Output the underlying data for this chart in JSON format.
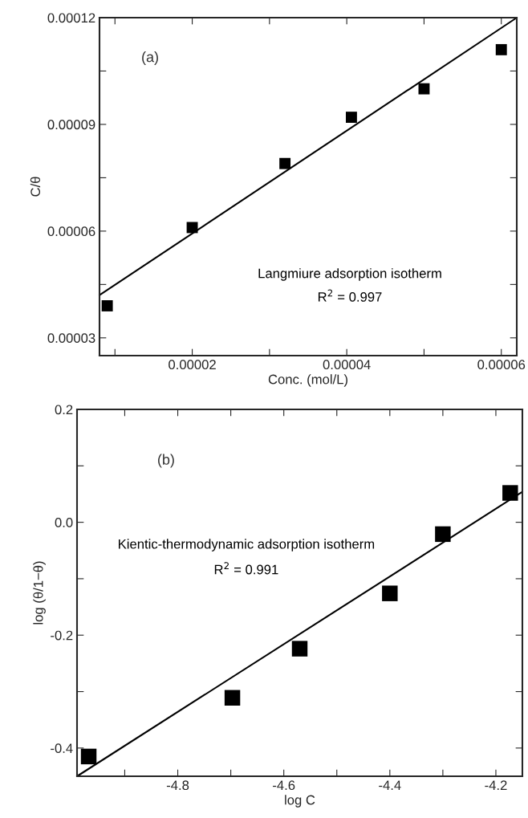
{
  "chart_data": [
    {
      "type": "scatter",
      "xlabel": "Conc. (mol/L)",
      "ylabel": "C/θ",
      "marker": "square",
      "grid": false,
      "legend": false,
      "annotations": [
        "(a)",
        "Langmiure adsorption isotherm",
        "R$^{2}$ = 0.997"
      ],
      "xlim": [
        8e-06,
        6.2e-05
      ],
      "ylim": [
        2.5e-05,
        0.00012
      ],
      "xticks": [
        {
          "value": 1e-05,
          "label": null
        },
        {
          "value": 2e-05,
          "label": "0.00002"
        },
        {
          "value": 3e-05,
          "label": null
        },
        {
          "value": 4e-05,
          "label": "0.00004"
        },
        {
          "value": 5e-05,
          "label": null
        },
        {
          "value": 6e-05,
          "label": "0.00006"
        }
      ],
      "yticks": [
        {
          "value": 3e-05,
          "label": "0.00003"
        },
        {
          "value": 4.5e-05,
          "label": null
        },
        {
          "value": 6e-05,
          "label": "0.00006"
        },
        {
          "value": 7.5e-05,
          "label": null
        },
        {
          "value": 9e-05,
          "label": "0.00009"
        },
        {
          "value": 0.000105,
          "label": null
        },
        {
          "value": 0.00012,
          "label": "0.00012"
        }
      ],
      "series": [
        {
          "color": "#000000",
          "x": [
            9e-06,
            2e-05,
            3.2e-05,
            4.06e-05,
            5e-05,
            6e-05
          ],
          "values": [
            3.9e-05,
            6.1e-05,
            7.9e-05,
            9.2e-05,
            0.0001,
            0.000111
          ]
        },
        {
          "type": "line",
          "color": "#000000",
          "marker": "none",
          "line_style": "solid",
          "x": [
            8e-06,
            6.2e-05
          ],
          "values": [
            4.2e-05,
            0.00012
          ]
        }
      ]
    },
    {
      "type": "scatter",
      "xlabel": "log C",
      "ylabel": "log (θ/1−θ)",
      "marker": "square",
      "grid": false,
      "legend": false,
      "annotations": [
        "(b)",
        "Kientic-thermodynamic adsorption isotherm",
        "R$^{2}$ = 0.991"
      ],
      "xlim": [
        -4.99,
        -4.15
      ],
      "ylim": [
        -0.45,
        0.2
      ],
      "xticks": [
        {
          "value": -4.9,
          "label": null
        },
        -4.8,
        {
          "value": -4.7,
          "label": null
        },
        -4.6,
        {
          "value": -4.5,
          "label": null
        },
        -4.4,
        {
          "value": -4.3,
          "label": null
        },
        -4.2
      ],
      "yticks": [
        -0.4,
        {
          "value": -0.3,
          "label": null
        },
        -0.2,
        {
          "value": -0.1,
          "label": null
        },
        {
          "value": 0.0,
          "label": "0.0"
        },
        {
          "value": 0.1,
          "label": null
        },
        0.2
      ],
      "series": [
        {
          "color": "#000000",
          "x": [
            -4.968,
            -4.697,
            -4.57,
            -4.4,
            -4.3,
            -4.173
          ],
          "values": [
            -0.415,
            -0.311,
            -0.224,
            -0.126,
            -0.021,
            0.052
          ]
        },
        {
          "type": "line",
          "color": "#000000",
          "marker": "none",
          "line_style": "solid",
          "x": [
            -4.99,
            -4.15
          ],
          "values": [
            -0.45,
            0.054
          ]
        }
      ]
    }
  ]
}
